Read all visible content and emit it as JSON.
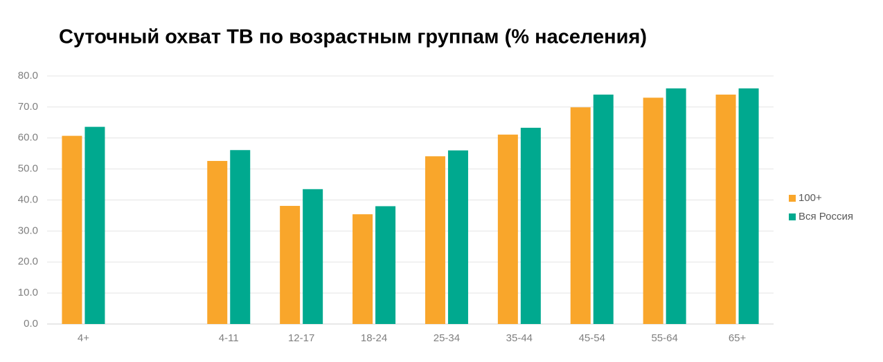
{
  "chart_data": {
    "type": "bar",
    "title": "Суточный охват ТВ по возрастным группам (% населения)",
    "categories": [
      "4+",
      null,
      "4-11",
      "12-17",
      "18-24",
      "25-34",
      "35-44",
      "45-54",
      "55-64",
      "65+"
    ],
    "series": [
      {
        "name": "100+",
        "color": "#f9a62b",
        "values": [
          60.7,
          null,
          52.6,
          38.1,
          35.4,
          54.1,
          61.1,
          69.9,
          73.0,
          74.0
        ]
      },
      {
        "name": "Вся Россия",
        "color": "#00a98f",
        "values": [
          63.6,
          null,
          56.1,
          43.5,
          38.0,
          56.0,
          63.3,
          74.0,
          76.0,
          76.0
        ]
      }
    ],
    "ylim": [
      0,
      80
    ],
    "yticks": [
      {
        "value": 0,
        "label": "0.0"
      },
      {
        "value": 10,
        "label": "10.0"
      },
      {
        "value": 20,
        "label": "20.0"
      },
      {
        "value": 30,
        "label": "30.0"
      },
      {
        "value": 40,
        "label": "40.0"
      },
      {
        "value": 50,
        "label": "50.0"
      },
      {
        "value": 60,
        "label": "60.0"
      },
      {
        "value": 70,
        "label": "70.0"
      },
      {
        "value": 80,
        "label": "80.0"
      }
    ],
    "grid": true,
    "legend": "right"
  }
}
